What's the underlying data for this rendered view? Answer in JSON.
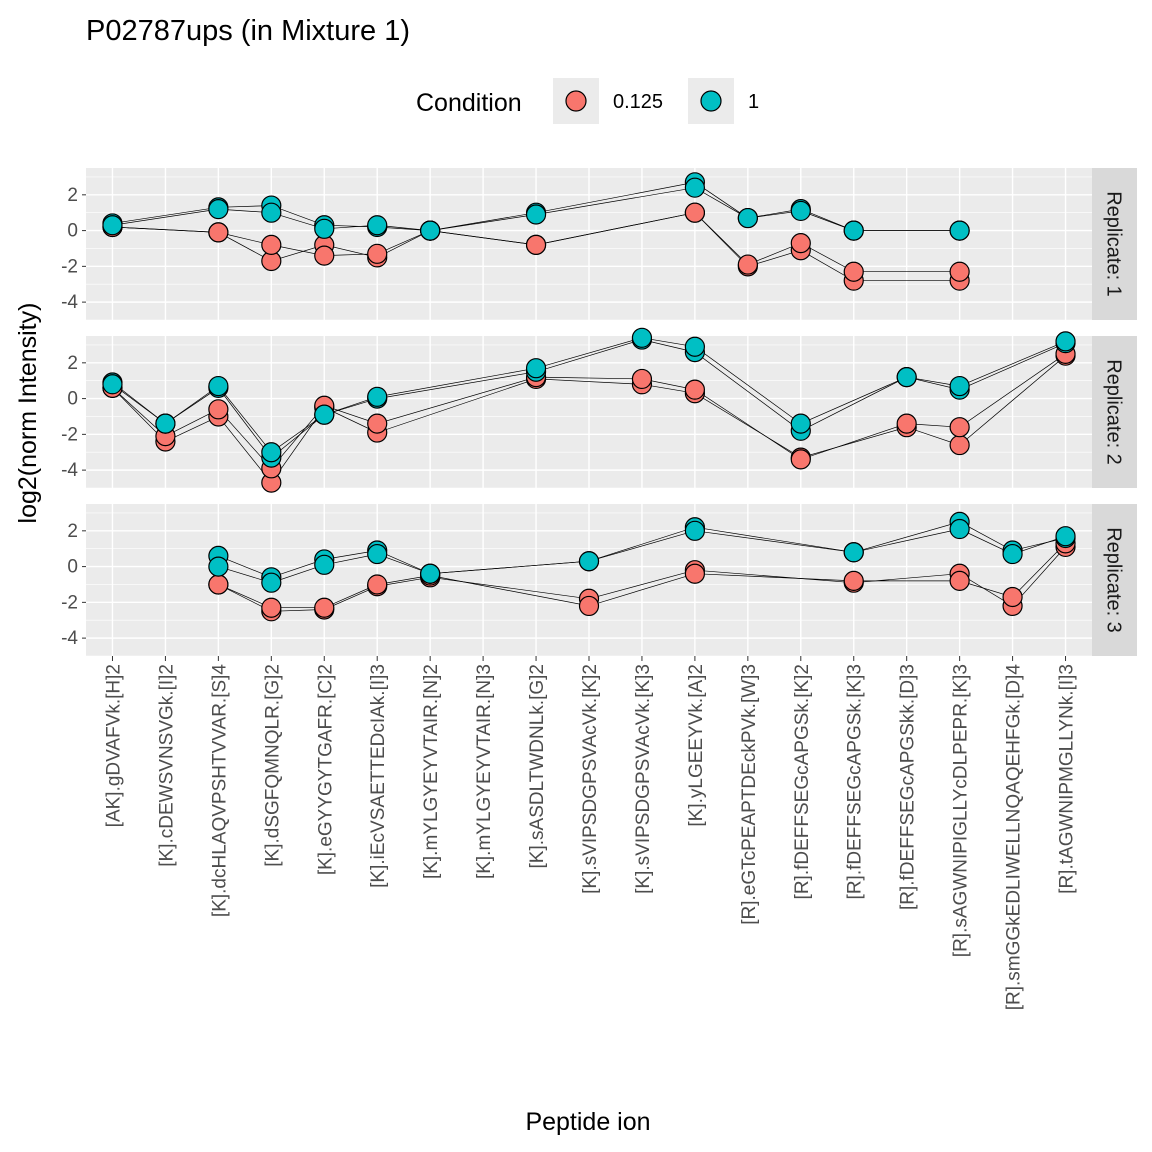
{
  "chart_data": {
    "type": "line",
    "title": "P02787ups (in Mixture 1)",
    "xlabel": "Peptide ion",
    "ylabel": "log2(norm Intensity)",
    "ylim": [
      -5,
      3.5
    ],
    "yticks": [
      -4,
      -2,
      0,
      2
    ],
    "categories": [
      "[AK].gDVAFVk.[H]2",
      "[K].cDEWSVNSVGk.[I]2",
      "[K].dcHLAQVPSHTVVAR.[S]4",
      "[K].dSGFQMNQLR.[G]2",
      "[K].eGYYGYTGAFR.[C]2",
      "[K].iEcVSAETTEDcIAk.[I]3",
      "[K].mYLGYEYVTAIR.[N]2",
      "[K].mYLGYEYVTAIR.[N]3",
      "[K].sASDLTWDNLk.[G]2",
      "[K].sVIPSDGPSVAcVk.[K]2",
      "[K].sVIPSDGPSVAcVk.[K]3",
      "[K].yLGEEYVk.[A]2",
      "[R].eGTcPEAPTDEckPVk.[W]3",
      "[R].fDEFFSEGcAPGSk.[K]2",
      "[R].fDEFFSEGcAPGSk.[K]3",
      "[R].fDEFFSEGcAPGSkk.[D]3",
      "[R].sAGWNIPIGLLYcDLPEPR.[K]3",
      "[R].smGGkEDLIWELLNQAQEHFGk.[D]4",
      "[R].tAGWNIPMGLLYNk.[I]3"
    ],
    "legend": {
      "title": "Condition",
      "position": "top",
      "items": [
        {
          "label": "0.125",
          "color": "#F8766D"
        },
        {
          "label": "1",
          "color": "#00BFC4"
        }
      ]
    },
    "panels": [
      {
        "strip": "Replicate: 1",
        "series": [
          {
            "condition": "0.125",
            "values": [
              0.2,
              null,
              -0.1,
              -1.7,
              -0.8,
              -1.5,
              0.0,
              null,
              -0.8,
              null,
              null,
              1.0,
              -2.0,
              -1.1,
              -2.8,
              null,
              -2.8,
              null,
              null
            ]
          },
          {
            "condition": "0.125",
            "values": [
              0.2,
              null,
              -0.1,
              -0.8,
              -1.4,
              -1.3,
              0.0,
              null,
              -0.8,
              null,
              null,
              1.0,
              -1.9,
              -0.7,
              -2.3,
              null,
              -2.3,
              null,
              null
            ]
          },
          {
            "condition": "1",
            "values": [
              0.4,
              null,
              1.3,
              1.4,
              0.3,
              0.2,
              0.0,
              null,
              1.0,
              null,
              null,
              2.7,
              0.7,
              1.2,
              0.0,
              null,
              0.0,
              null,
              null
            ]
          },
          {
            "condition": "1",
            "values": [
              0.3,
              null,
              1.2,
              1.0,
              0.1,
              0.3,
              0.0,
              null,
              0.9,
              null,
              null,
              2.4,
              0.7,
              1.1,
              0.0,
              null,
              0.0,
              null,
              null
            ]
          }
        ]
      },
      {
        "strip": "Replicate: 2",
        "series": [
          {
            "condition": "0.125",
            "values": [
              0.6,
              -2.4,
              -1.0,
              -4.7,
              -0.5,
              -1.9,
              null,
              null,
              1.1,
              null,
              0.8,
              0.3,
              null,
              -3.3,
              null,
              -1.6,
              -2.6,
              null,
              2.4
            ]
          },
          {
            "condition": "0.125",
            "values": [
              0.6,
              -2.1,
              -0.6,
              -3.9,
              -0.4,
              -1.4,
              null,
              null,
              1.2,
              null,
              1.1,
              0.5,
              null,
              -3.4,
              null,
              -1.4,
              -1.6,
              null,
              2.5
            ]
          },
          {
            "condition": "1",
            "values": [
              0.9,
              -1.4,
              0.6,
              -3.3,
              -0.9,
              0.0,
              null,
              null,
              1.5,
              null,
              3.3,
              2.6,
              null,
              -1.8,
              null,
              1.2,
              0.5,
              null,
              3.1
            ]
          },
          {
            "condition": "1",
            "values": [
              0.8,
              -1.4,
              0.7,
              -3.0,
              -0.9,
              0.1,
              null,
              null,
              1.7,
              null,
              3.4,
              2.9,
              null,
              -1.4,
              null,
              1.2,
              0.7,
              null,
              3.2
            ]
          }
        ]
      },
      {
        "strip": "Replicate: 3",
        "series": [
          {
            "condition": "0.125",
            "values": [
              null,
              null,
              -1.0,
              -2.5,
              -2.4,
              -1.1,
              -0.6,
              null,
              null,
              -1.8,
              null,
              -0.2,
              null,
              null,
              -0.9,
              null,
              -0.4,
              -2.2,
              1.1
            ]
          },
          {
            "condition": "0.125",
            "values": [
              null,
              null,
              -1.0,
              -2.3,
              -2.3,
              -1.0,
              -0.5,
              null,
              null,
              -2.2,
              null,
              -0.4,
              null,
              null,
              -0.8,
              null,
              -0.8,
              -1.7,
              1.3
            ]
          },
          {
            "condition": "1",
            "values": [
              null,
              null,
              0.6,
              -0.6,
              0.4,
              0.9,
              -0.4,
              null,
              null,
              0.3,
              null,
              2.2,
              null,
              null,
              0.8,
              null,
              2.5,
              0.9,
              1.6
            ]
          },
          {
            "condition": "1",
            "values": [
              null,
              null,
              0.0,
              -0.9,
              0.1,
              0.7,
              -0.4,
              null,
              null,
              0.3,
              null,
              2.0,
              null,
              null,
              0.8,
              null,
              2.1,
              0.7,
              1.7
            ]
          }
        ]
      }
    ]
  }
}
